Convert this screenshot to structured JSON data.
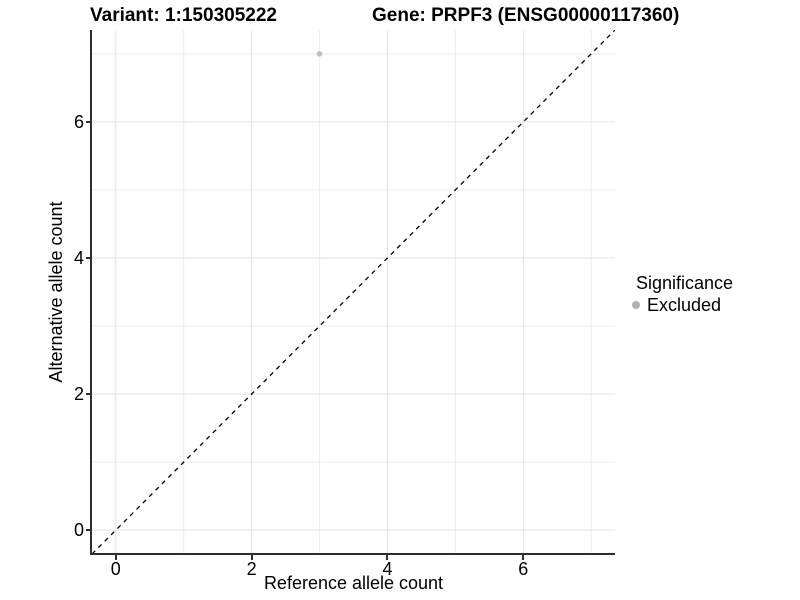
{
  "titles": {
    "variant": "Variant: 1:150305222",
    "gene": "Gene: PRPF3 (ENSG00000117360)"
  },
  "axes": {
    "x_label": "Reference allele count",
    "y_label": "Alternative allele count"
  },
  "legend": {
    "title": "Significance",
    "items": [
      {
        "label": "Excluded",
        "color": "#b3b3b3"
      }
    ]
  },
  "chart_data": {
    "type": "scatter",
    "title": "Variant: 1:150305222   Gene: PRPF3 (ENSG00000117360)",
    "xlabel": "Reference allele count",
    "ylabel": "Alternative allele count",
    "xlim": [
      -0.35,
      7.35
    ],
    "ylim": [
      -0.35,
      7.35
    ],
    "x_ticks": [
      0,
      2,
      4,
      6
    ],
    "y_ticks": [
      0,
      2,
      4,
      6
    ],
    "x_minor_ticks": [
      1,
      3,
      5,
      7
    ],
    "y_minor_ticks": [
      1,
      3,
      5,
      7
    ],
    "grid": true,
    "legend_position": "right",
    "series": [
      {
        "name": "Excluded",
        "color": "#bfbfbf",
        "points": [
          {
            "x": 3,
            "y": 7
          }
        ]
      }
    ],
    "abline": {
      "slope": 1,
      "intercept": 0,
      "style": "dashed",
      "color": "#000000"
    },
    "colors": {
      "grid_major": "#e2e2e2",
      "grid_minor": "#ededed",
      "axis_line": "#2e2e2e",
      "tick_text": "#000000"
    }
  }
}
